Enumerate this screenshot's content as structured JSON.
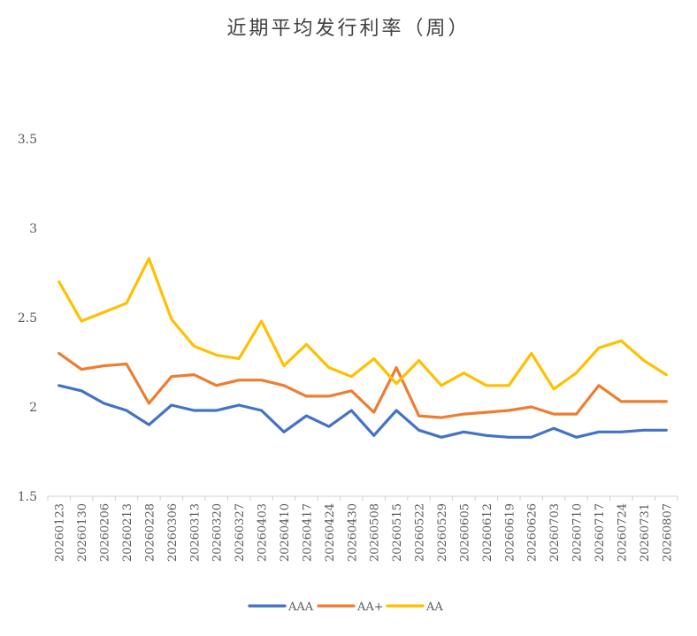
{
  "chart_data": {
    "type": "line",
    "title": "近期平均发行利率（周）",
    "xlabel": "",
    "ylabel": "",
    "ylim": [
      1.5,
      3.5
    ],
    "yticks": [
      "1.5",
      "2",
      "2.5",
      "3",
      "3.5"
    ],
    "grid": false,
    "legend_position": "bottom",
    "x": [
      "20260123",
      "20260130",
      "20260206",
      "20260213",
      "20260228",
      "20260306",
      "20260313",
      "20260320",
      "20260327",
      "20260403",
      "20260410",
      "20260417",
      "20260424",
      "20260430",
      "20260508",
      "20260515",
      "20260522",
      "20260529",
      "20260605",
      "20260612",
      "20260619",
      "20260626",
      "20260703",
      "20260710",
      "20260717",
      "20260724",
      "20260731",
      "20260807"
    ],
    "series": [
      {
        "name": "AAA",
        "color": "#4472C4",
        "values": [
          2.12,
          2.09,
          2.02,
          1.98,
          1.9,
          2.01,
          1.98,
          1.98,
          2.01,
          1.98,
          1.86,
          1.95,
          1.89,
          1.98,
          1.84,
          1.98,
          1.87,
          1.83,
          1.86,
          1.84,
          1.83,
          1.83,
          1.88,
          1.83,
          1.86,
          1.86,
          1.87,
          1.87
        ]
      },
      {
        "name": "AA+",
        "color": "#ED7D31",
        "values": [
          2.3,
          2.21,
          2.23,
          2.24,
          2.02,
          2.17,
          2.18,
          2.12,
          2.15,
          2.15,
          2.12,
          2.06,
          2.06,
          2.09,
          1.97,
          2.22,
          1.95,
          1.94,
          1.96,
          1.97,
          1.98,
          2.0,
          1.96,
          1.96,
          2.12,
          2.03,
          2.03,
          2.03
        ]
      },
      {
        "name": "AA",
        "color": "#FFC000",
        "values": [
          2.7,
          2.48,
          2.53,
          2.58,
          2.83,
          2.49,
          2.34,
          2.29,
          2.27,
          2.48,
          2.23,
          2.35,
          2.22,
          2.17,
          2.27,
          2.13,
          2.26,
          2.12,
          2.19,
          2.12,
          2.12,
          2.3,
          2.1,
          2.19,
          2.33,
          2.37,
          2.26,
          2.18
        ]
      }
    ]
  }
}
